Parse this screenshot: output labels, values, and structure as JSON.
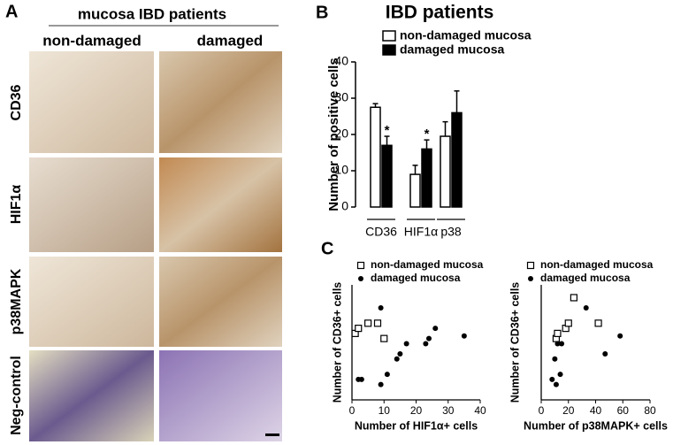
{
  "panel_labels": [
    "A",
    "B",
    "C"
  ],
  "panel_a": {
    "header": "mucosa IBD patients",
    "columns": [
      "non-damaged",
      "damaged"
    ],
    "rows": [
      "CD36",
      "HIF1α",
      "p38MAPK",
      "Neg-control"
    ]
  },
  "chart_data": [
    {
      "type": "bar",
      "title": "IBD patients",
      "y_label": "Number of positive cells",
      "categories": [
        "CD36",
        "HIF1α",
        "p38"
      ],
      "series": [
        {
          "name": "non-damaged mucosa",
          "color": "#ffffff",
          "values": [
            27.5,
            9,
            19.5
          ],
          "errors": [
            1,
            2.5,
            4
          ]
        },
        {
          "name": "damaged mucosa",
          "color": "#000000",
          "values": [
            17,
            16,
            26
          ],
          "errors": [
            2.5,
            2.5,
            6
          ],
          "significance": [
            "*",
            "*",
            null
          ]
        }
      ],
      "ylim": [
        0,
        40
      ],
      "yticks": [
        0,
        10,
        20,
        30,
        40
      ]
    },
    {
      "type": "scatter",
      "x_label": "Number of HIF1α+ cells",
      "y_label": "Number of CD36+ cells",
      "series": [
        {
          "name": "non-damaged mucosa",
          "color": "#000000",
          "marker": "square",
          "x": [
            1,
            2,
            5,
            8,
            10
          ],
          "values": [
            26,
            28,
            30,
            30,
            24
          ]
        },
        {
          "name": "damaged mucosa",
          "color": "#000000",
          "marker": "circle",
          "x": [
            2,
            3,
            9,
            9,
            11,
            14,
            15,
            17,
            23,
            24,
            26,
            35
          ],
          "values": [
            8,
            8,
            6,
            36,
            10,
            16,
            18,
            22,
            22,
            24,
            28,
            25
          ]
        }
      ],
      "xlim": [
        0,
        40
      ],
      "xticks": [
        0,
        10,
        20,
        30,
        40
      ],
      "ylim": [
        0,
        45
      ]
    },
    {
      "type": "scatter",
      "x_label": "Number of p38MAPK+ cells",
      "y_label": "Number of CD36+ cells",
      "series": [
        {
          "name": "non-damaged mucosa",
          "color": "#000000",
          "marker": "square",
          "x": [
            11,
            12,
            18,
            20,
            24,
            42
          ],
          "values": [
            24,
            26,
            28,
            30,
            40,
            30
          ]
        },
        {
          "name": "damaged mucosa",
          "color": "#000000",
          "marker": "circle",
          "x": [
            8,
            10,
            11,
            12,
            14,
            15,
            33,
            47,
            58
          ],
          "values": [
            8,
            16,
            6,
            22,
            10,
            22,
            36,
            18,
            25
          ]
        }
      ],
      "xlim": [
        0,
        80
      ],
      "xticks": [
        0,
        20,
        40,
        60,
        80
      ],
      "ylim": [
        0,
        45
      ]
    }
  ]
}
